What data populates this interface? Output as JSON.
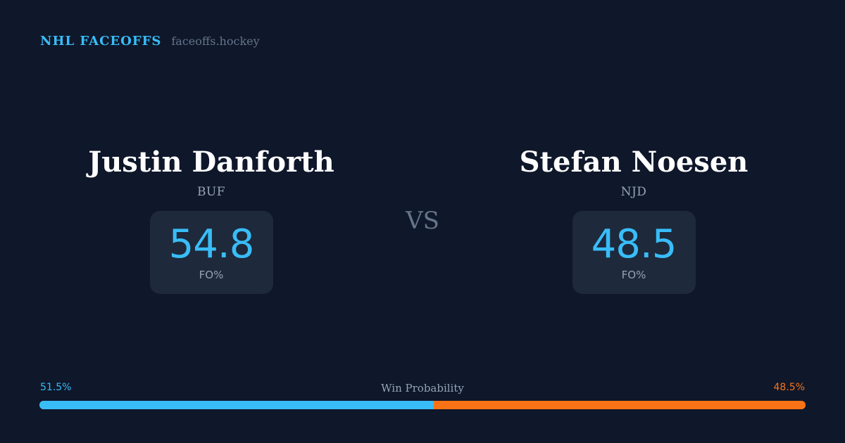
{
  "brand": {
    "title": "NHL FACEOFFS",
    "domain": "faceoffs.hockey"
  },
  "players": [
    {
      "name": "Justin Danforth",
      "team": "BUF",
      "stat_value": "54.8",
      "stat_label": "FO%"
    },
    {
      "name": "Stefan Noesen",
      "team": "NJD",
      "stat_value": "48.5",
      "stat_label": "FO%"
    }
  ],
  "vs_label": "VS",
  "win_probability": {
    "title": "Win Probability",
    "left_label": "51.5%",
    "right_label": "48.5%",
    "left_fraction": 0.515
  },
  "colors": {
    "background": "#0f172a",
    "accent_left": "#38bdf8",
    "accent_right": "#f97316",
    "card": "#1e293b"
  }
}
